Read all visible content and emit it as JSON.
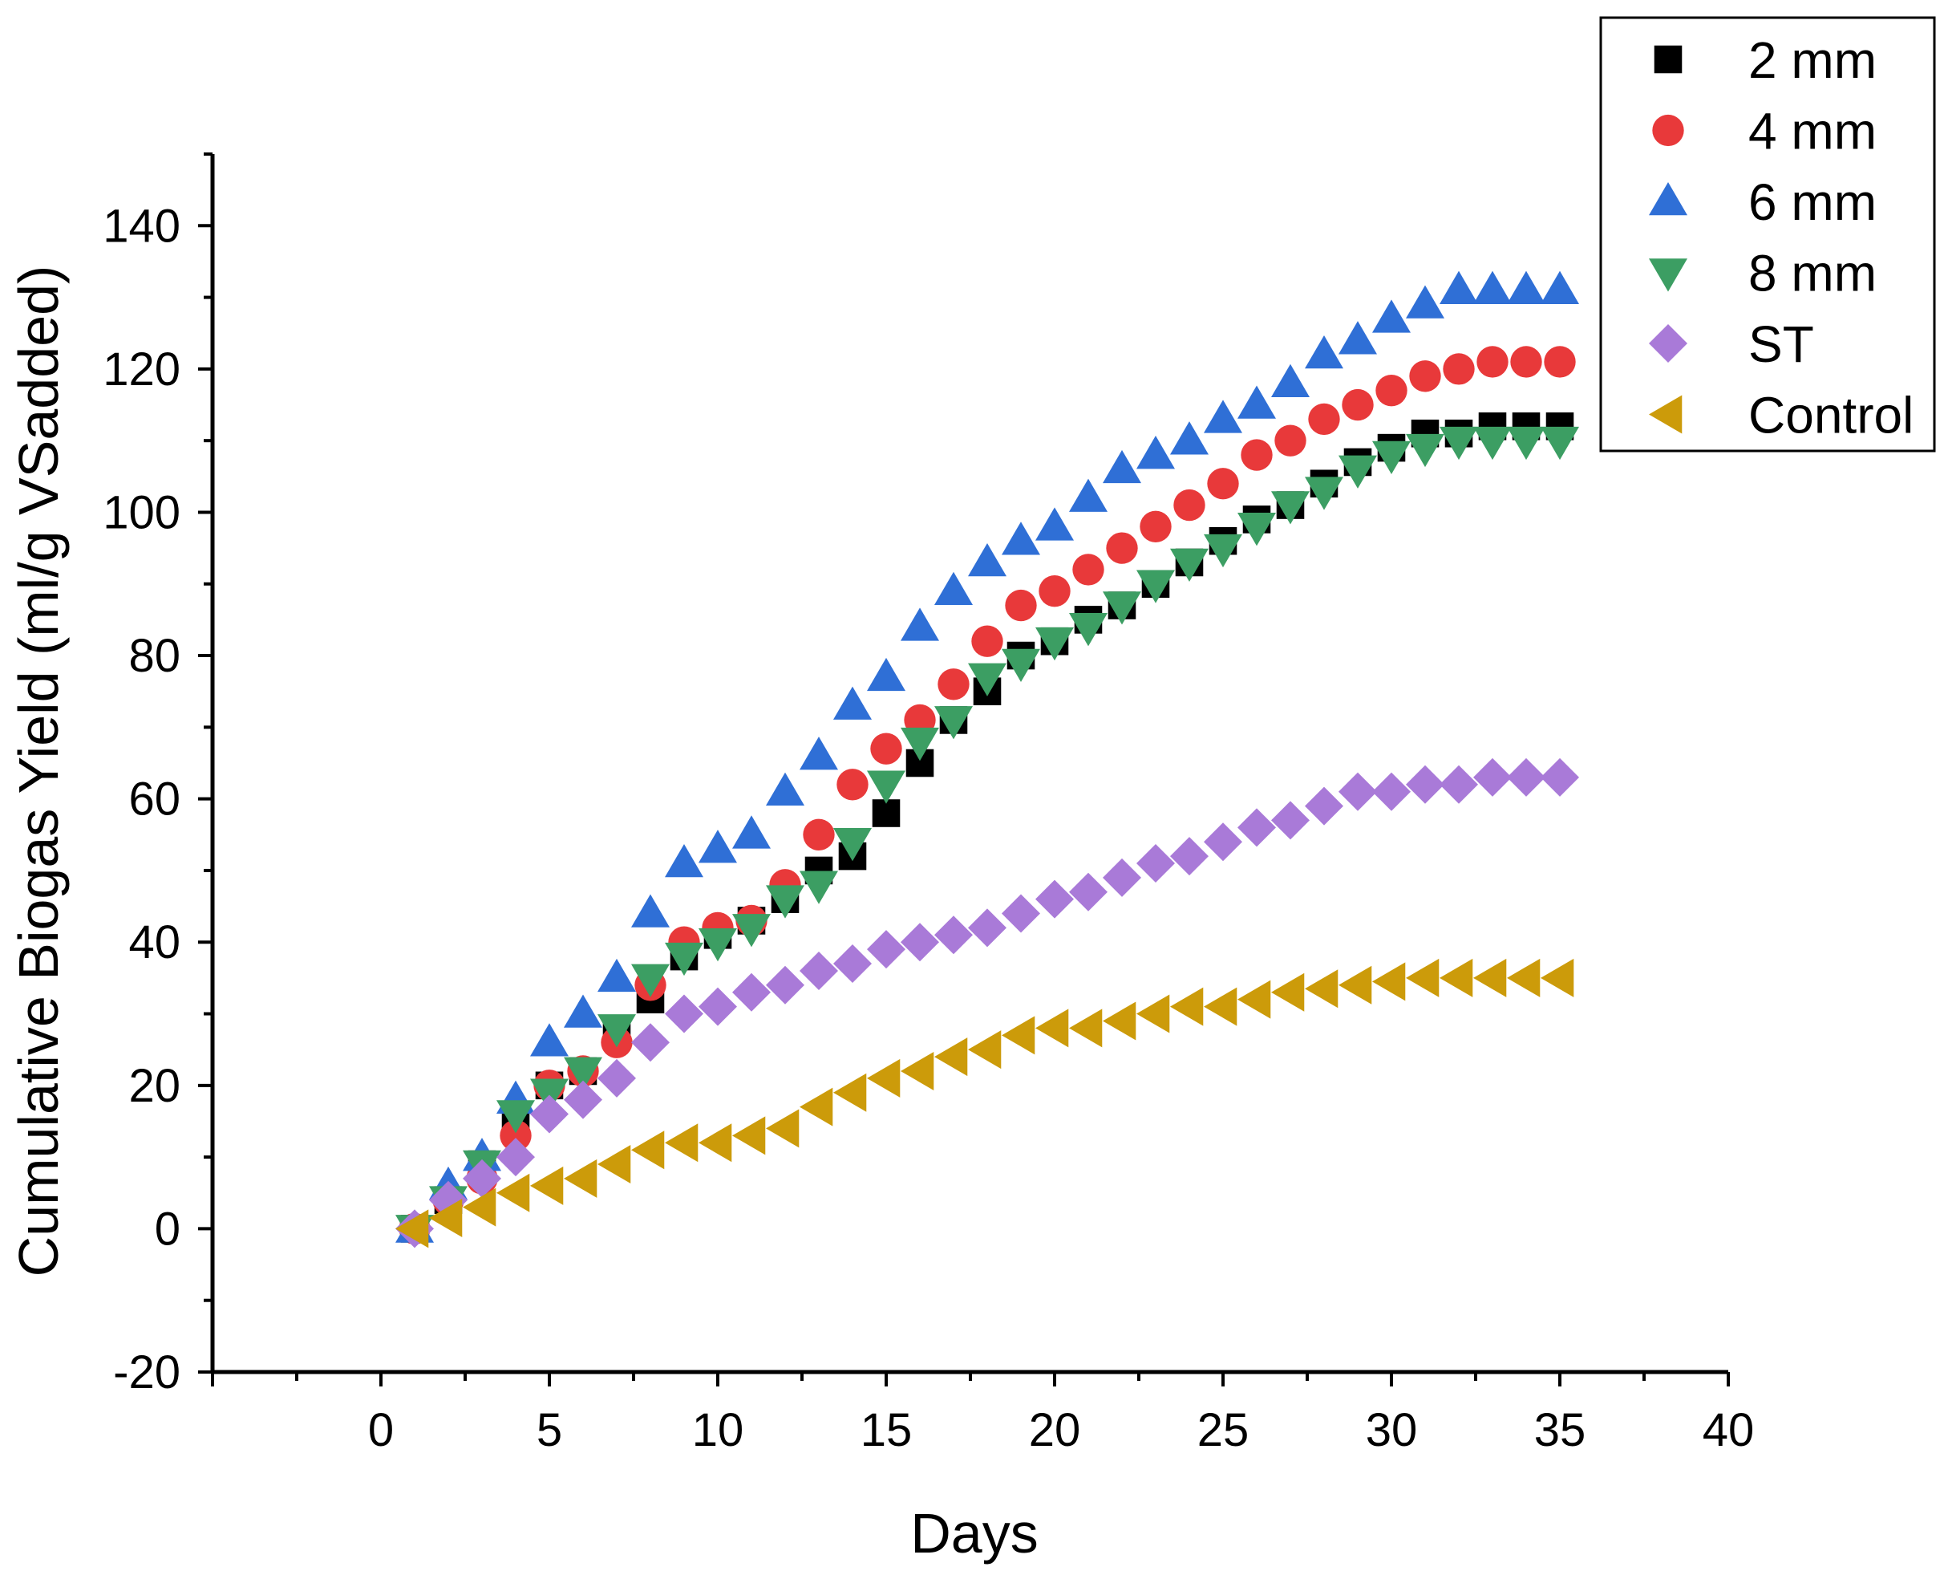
{
  "chart_data": {
    "type": "scatter",
    "title": "",
    "xlabel": "Days",
    "ylabel": "Cumulative Biogas Yield (ml/g VSadded)",
    "xlim": [
      -5,
      40
    ],
    "ylim": [
      -20,
      150
    ],
    "xticks": [
      0,
      5,
      10,
      15,
      20,
      25,
      30,
      35,
      40
    ],
    "yticks": [
      -20,
      0,
      20,
      40,
      60,
      80,
      100,
      120,
      140
    ],
    "xtick_labels": [
      "0",
      "5",
      "10",
      "15",
      "20",
      "25",
      "30",
      "35",
      "40"
    ],
    "ytick_labels": [
      "-20",
      "0",
      "20",
      "40",
      "60",
      "80",
      "100",
      "120",
      "140"
    ],
    "legend_position": "top-right",
    "x": [
      1,
      2,
      3,
      4,
      5,
      6,
      7,
      8,
      9,
      10,
      11,
      12,
      13,
      14,
      15,
      16,
      17,
      18,
      19,
      20,
      21,
      22,
      23,
      24,
      25,
      26,
      27,
      28,
      29,
      30,
      31,
      32,
      33,
      34,
      35
    ],
    "series": [
      {
        "name": "2 mm",
        "marker": "square",
        "color": "#000000",
        "values": [
          0,
          4,
          9,
          15,
          20,
          22,
          27,
          32,
          38,
          41,
          43,
          46,
          50,
          52,
          58,
          65,
          71,
          75,
          80,
          82,
          85,
          87,
          90,
          93,
          96,
          99,
          101,
          104,
          107,
          109,
          111,
          111,
          112,
          112,
          112
        ]
      },
      {
        "name": "4 mm",
        "marker": "circle",
        "color": "#e8393a",
        "values": [
          0,
          4,
          7,
          13,
          20,
          22,
          26,
          34,
          40,
          42,
          43,
          48,
          55,
          62,
          67,
          71,
          76,
          82,
          87,
          89,
          92,
          95,
          98,
          101,
          104,
          108,
          110,
          113,
          115,
          117,
          119,
          120,
          121,
          121,
          121
        ]
      },
      {
        "name": "6 mm",
        "marker": "triangle-up",
        "color": "#2f6fd6",
        "values": [
          0,
          6,
          10,
          18,
          26,
          30,
          35,
          44,
          51,
          53,
          55,
          61,
          66,
          73,
          77,
          84,
          89,
          93,
          96,
          98,
          102,
          106,
          108,
          110,
          113,
          115,
          118,
          122,
          124,
          127,
          129,
          131,
          131,
          131,
          131
        ]
      },
      {
        "name": "8 mm",
        "marker": "triangle-down",
        "color": "#3c9e63",
        "values": [
          0,
          4,
          9,
          16,
          19,
          22,
          28,
          35,
          38,
          40,
          42,
          46,
          48,
          54,
          62,
          68,
          71,
          77,
          79,
          82,
          84,
          87,
          90,
          93,
          95,
          98,
          101,
          103,
          106,
          108,
          109,
          110,
          110,
          110,
          110
        ]
      },
      {
        "name": "ST",
        "marker": "diamond",
        "color": "#a97ad8",
        "values": [
          0,
          4,
          7,
          10,
          16,
          18,
          21,
          26,
          30,
          31,
          33,
          34,
          36,
          37,
          39,
          40,
          41,
          42,
          44,
          46,
          47,
          49,
          51,
          52,
          54,
          56,
          57,
          59,
          61,
          61,
          62,
          62,
          63,
          63,
          63
        ]
      },
      {
        "name": "Control",
        "marker": "triangle-left",
        "color": "#cc9b0a",
        "values": [
          0,
          1.5,
          3,
          5,
          6,
          7,
          9,
          11,
          12,
          12,
          13,
          14,
          17,
          19,
          21,
          22,
          24,
          25,
          27,
          28,
          28,
          29,
          30,
          31,
          31,
          32,
          33,
          33.5,
          34,
          34.5,
          35,
          35,
          35,
          35,
          35
        ]
      }
    ]
  }
}
